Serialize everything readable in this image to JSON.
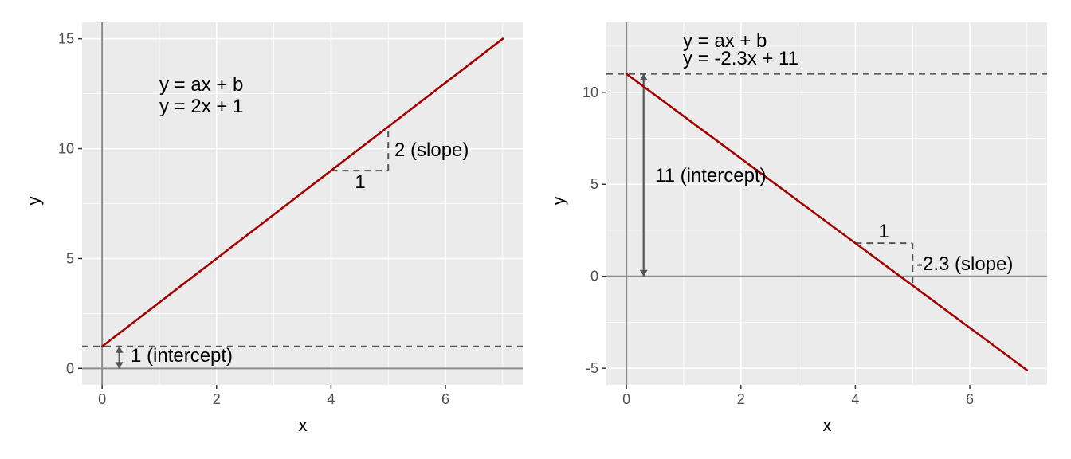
{
  "chart_data": [
    {
      "type": "line",
      "xlabel": "x",
      "ylabel": "y",
      "xlim": [
        -0.35,
        7.35
      ],
      "ylim": [
        -0.75,
        15.75
      ],
      "x_ticks": [
        0,
        2,
        4,
        6
      ],
      "y_ticks": [
        0,
        5,
        10,
        15
      ],
      "grid": true,
      "line_color": "#A50000",
      "series": [
        {
          "x": [
            0,
            7
          ],
          "values": [
            1,
            15
          ]
        }
      ],
      "intercept_line_y": 1,
      "intercept_arrow": {
        "x": 0.3,
        "from": 0,
        "to": 1
      },
      "slope_triangle": {
        "x0": 4,
        "x1": 5,
        "y0": 9,
        "y1": 11
      },
      "annotations": {
        "equation_general": "y = ax + b",
        "equation_specific": "y = 2x + 1",
        "intercept_label": "1 (intercept)",
        "run_label": "1",
        "slope_label": "2 (slope)"
      }
    },
    {
      "type": "line",
      "xlabel": "x",
      "ylabel": "y",
      "xlim": [
        -0.35,
        7.35
      ],
      "ylim": [
        -5.9,
        13.8
      ],
      "x_ticks": [
        0,
        2,
        4,
        6
      ],
      "y_ticks": [
        -5,
        0,
        5,
        10
      ],
      "grid": true,
      "line_color": "#A50000",
      "series": [
        {
          "x": [
            0,
            7
          ],
          "values": [
            11,
            -5.1
          ]
        }
      ],
      "intercept_line_y": 11,
      "intercept_arrow": {
        "x": 0.3,
        "from": 0,
        "to": 11
      },
      "slope_triangle": {
        "x0": 4,
        "x1": 5,
        "y0": 1.8,
        "y1": -0.5
      },
      "annotations": {
        "equation_general": "y = ax + b",
        "equation_specific": "y = -2.3x + 11",
        "intercept_label": "11 (intercept)",
        "run_label": "1",
        "slope_label": "-2.3 (slope)"
      }
    }
  ]
}
